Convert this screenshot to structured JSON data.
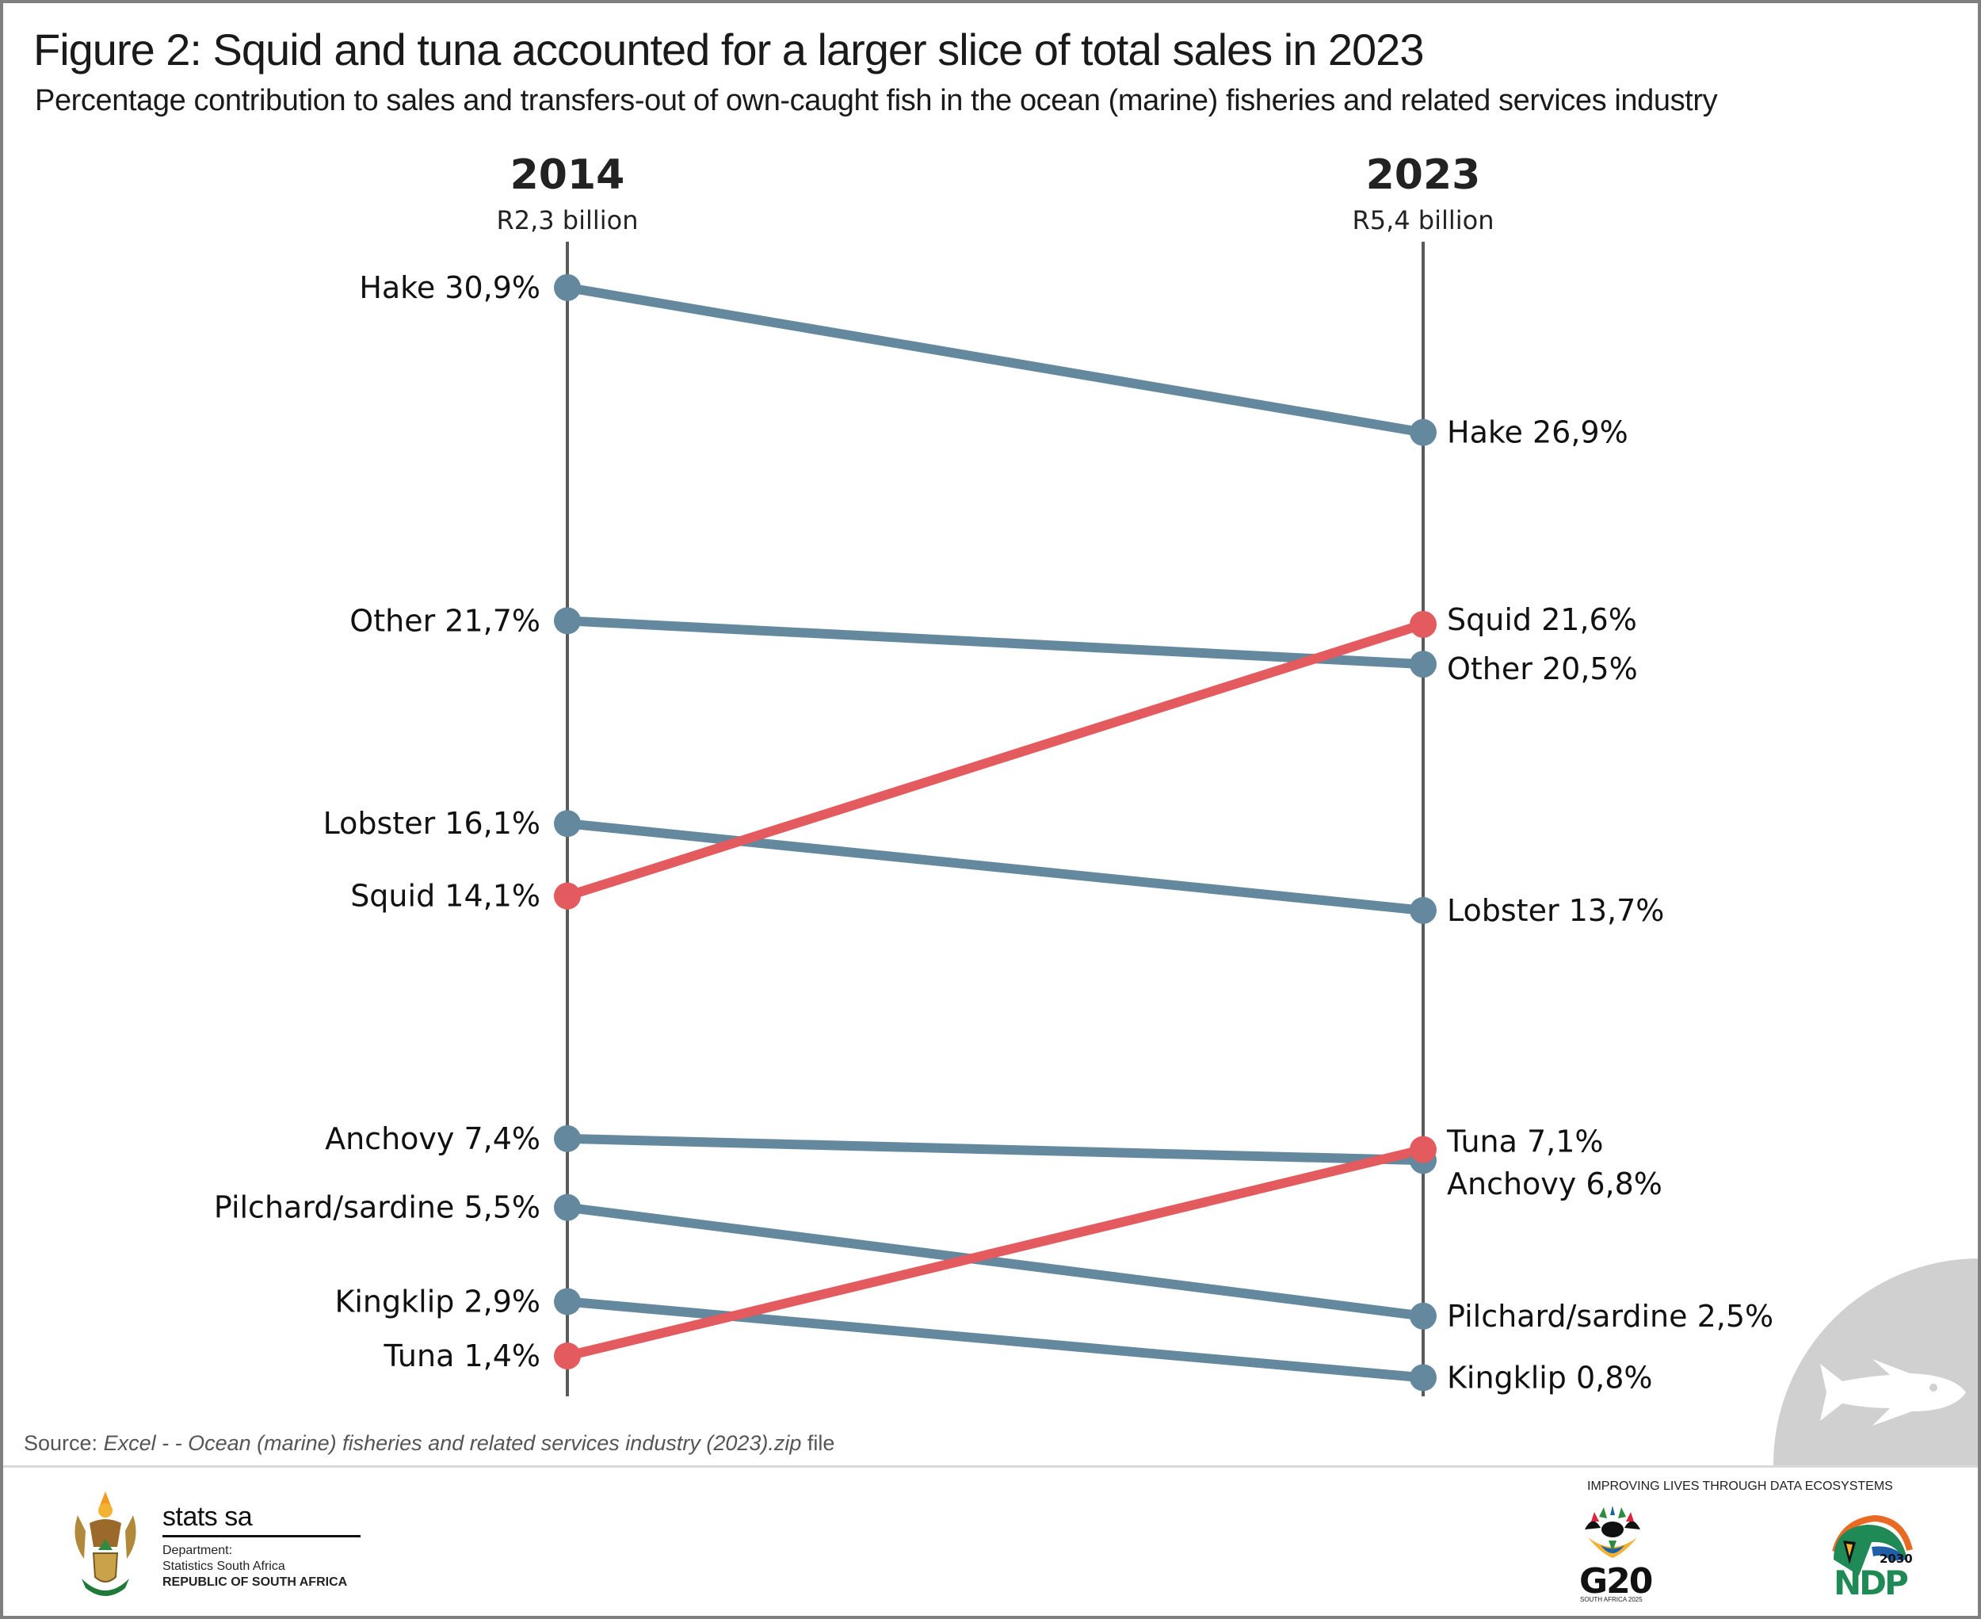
{
  "header": {
    "title": "Figure 2: Squid and tuna accounted for a larger slice of total sales in 2023",
    "subtitle": "Percentage contribution to sales and transfers-out of own-caught fish in the ocean (marine) fisheries and related services industry"
  },
  "chart_data": {
    "type": "slope",
    "title": "Figure 2: Squid and tuna accounted for a larger slice of total sales in 2023",
    "subtitle": "Percentage contribution to sales and transfers-out of own-caught fish in the ocean (marine) fisheries and related services industry",
    "unit": "%",
    "decimal_separator": ",",
    "periods": [
      {
        "year": "2014",
        "total": "R2,3 billion"
      },
      {
        "year": "2023",
        "total": "R5,4 billion"
      }
    ],
    "colors": {
      "default": "#64899e",
      "highlight": "#e35a5f",
      "axis": "#5a5a5a"
    },
    "series": [
      {
        "name": "Hake",
        "values": [
          30.9,
          26.9
        ],
        "highlight": false
      },
      {
        "name": "Other",
        "values": [
          21.7,
          20.5
        ],
        "highlight": false
      },
      {
        "name": "Lobster",
        "values": [
          16.1,
          13.7
        ],
        "highlight": false
      },
      {
        "name": "Squid",
        "values": [
          14.1,
          21.6
        ],
        "highlight": true
      },
      {
        "name": "Anchovy",
        "values": [
          7.4,
          6.8
        ],
        "highlight": false
      },
      {
        "name": "Pilchard/sardine",
        "values": [
          5.5,
          2.5
        ],
        "highlight": false
      },
      {
        "name": "Kingklip",
        "values": [
          2.9,
          0.8
        ],
        "highlight": false
      },
      {
        "name": "Tuna",
        "values": [
          1.4,
          7.1
        ],
        "highlight": true
      }
    ],
    "labels_left": [
      "Hake 30,9%",
      "Other 21,7%",
      "Lobster 16,1%",
      "Squid 14,1%",
      "Anchovy 7,4%",
      "Pilchard/sardine 5,5%",
      "Kingklip 2,9%",
      "Tuna 1,4%"
    ],
    "labels_right": [
      "Hake 26,9%",
      "Other 20,5%",
      "Lobster 13,7%",
      "Squid 21,6%",
      "Anchovy 6,8%",
      "Pilchard/sardine 2,5%",
      "Kingklip 0,8%",
      "Tuna 7,1%"
    ],
    "ylim": [
      0,
      31
    ],
    "grid": false,
    "legend": "none"
  },
  "source": {
    "prefix": "Source: ",
    "text": "Excel - - Ocean (marine) fisheries and related services industry (2023).zip",
    "suffix": " file"
  },
  "footer": {
    "org_name": "stats sa",
    "dept_line1": "Department:",
    "dept_line2": "Statistics South Africa",
    "dept_line3": "REPUBLIC OF SOUTH AFRICA",
    "tagline": "IMPROVING LIVES THROUGH DATA ECOSYSTEMS",
    "g20_label": "G20",
    "g20_sub": "SOUTH AFRICA 2025",
    "ndp_label": "NDP",
    "ndp_year": "2030"
  }
}
